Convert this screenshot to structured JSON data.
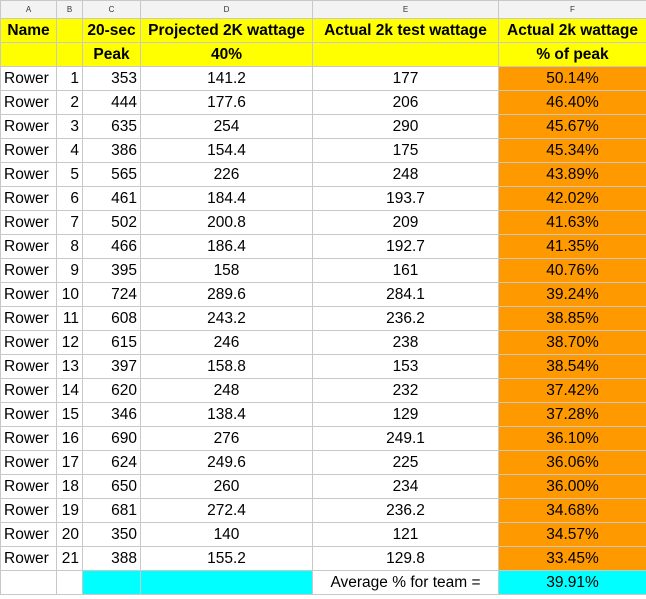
{
  "columns": [
    "A",
    "B",
    "C",
    "D",
    "E",
    "F"
  ],
  "header1": {
    "name": "Name",
    "c": "20-sec",
    "d": "Projected 2K wattage",
    "e": "Actual 2k test wattage",
    "f": "Actual 2k wattage"
  },
  "header2": {
    "c": "Peak",
    "d": "40%",
    "f": "% of peak"
  },
  "rows": [
    {
      "name": "Rower",
      "b": "1",
      "peak": "353",
      "proj": "141.2",
      "actual": "177",
      "pct": "50.14%"
    },
    {
      "name": "Rower",
      "b": "2",
      "peak": "444",
      "proj": "177.6",
      "actual": "206",
      "pct": "46.40%"
    },
    {
      "name": "Rower",
      "b": "3",
      "peak": "635",
      "proj": "254",
      "actual": "290",
      "pct": "45.67%"
    },
    {
      "name": "Rower",
      "b": "4",
      "peak": "386",
      "proj": "154.4",
      "actual": "175",
      "pct": "45.34%"
    },
    {
      "name": "Rower",
      "b": "5",
      "peak": "565",
      "proj": "226",
      "actual": "248",
      "pct": "43.89%"
    },
    {
      "name": "Rower",
      "b": "6",
      "peak": "461",
      "proj": "184.4",
      "actual": "193.7",
      "pct": "42.02%"
    },
    {
      "name": "Rower",
      "b": "7",
      "peak": "502",
      "proj": "200.8",
      "actual": "209",
      "pct": "41.63%"
    },
    {
      "name": "Rower",
      "b": "8",
      "peak": "466",
      "proj": "186.4",
      "actual": "192.7",
      "pct": "41.35%"
    },
    {
      "name": "Rower",
      "b": "9",
      "peak": "395",
      "proj": "158",
      "actual": "161",
      "pct": "40.76%"
    },
    {
      "name": "Rower",
      "b": "10",
      "peak": "724",
      "proj": "289.6",
      "actual": "284.1",
      "pct": "39.24%"
    },
    {
      "name": "Rower",
      "b": "11",
      "peak": "608",
      "proj": "243.2",
      "actual": "236.2",
      "pct": "38.85%"
    },
    {
      "name": "Rower",
      "b": "12",
      "peak": "615",
      "proj": "246",
      "actual": "238",
      "pct": "38.70%"
    },
    {
      "name": "Rower",
      "b": "13",
      "peak": "397",
      "proj": "158.8",
      "actual": "153",
      "pct": "38.54%"
    },
    {
      "name": "Rower",
      "b": "14",
      "peak": "620",
      "proj": "248",
      "actual": "232",
      "pct": "37.42%"
    },
    {
      "name": "Rower",
      "b": "15",
      "peak": "346",
      "proj": "138.4",
      "actual": "129",
      "pct": "37.28%"
    },
    {
      "name": "Rower",
      "b": "16",
      "peak": "690",
      "proj": "276",
      "actual": "249.1",
      "pct": "36.10%"
    },
    {
      "name": "Rower",
      "b": "17",
      "peak": "624",
      "proj": "249.6",
      "actual": "225",
      "pct": "36.06%"
    },
    {
      "name": "Rower",
      "b": "18",
      "peak": "650",
      "proj": "260",
      "actual": "234",
      "pct": "36.00%"
    },
    {
      "name": "Rower",
      "b": "19",
      "peak": "681",
      "proj": "272.4",
      "actual": "236.2",
      "pct": "34.68%"
    },
    {
      "name": "Rower",
      "b": "20",
      "peak": "350",
      "proj": "140",
      "actual": "121",
      "pct": "34.57%"
    },
    {
      "name": "Rower",
      "b": "21",
      "peak": "388",
      "proj": "155.2",
      "actual": "129.8",
      "pct": "33.45%"
    }
  ],
  "footer": {
    "label": "Average % for team =",
    "value": "39.91%"
  },
  "colors": {
    "header": "#ffff00",
    "pct": "#ff9900",
    "footer": "#00ffff"
  }
}
